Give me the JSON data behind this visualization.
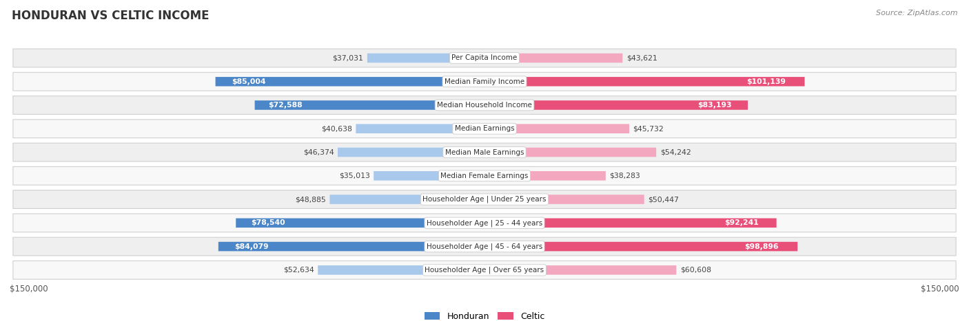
{
  "title": "HONDURAN VS CELTIC INCOME",
  "source": "Source: ZipAtlas.com",
  "categories": [
    "Per Capita Income",
    "Median Family Income",
    "Median Household Income",
    "Median Earnings",
    "Median Male Earnings",
    "Median Female Earnings",
    "Householder Age | Under 25 years",
    "Householder Age | 25 - 44 years",
    "Householder Age | 45 - 64 years",
    "Householder Age | Over 65 years"
  ],
  "honduran_values": [
    37031,
    85004,
    72588,
    40638,
    46374,
    35013,
    48885,
    78540,
    84079,
    52634
  ],
  "celtic_values": [
    43621,
    101139,
    83193,
    45732,
    54242,
    38283,
    50447,
    92241,
    98896,
    60608
  ],
  "honduran_labels": [
    "$37,031",
    "$85,004",
    "$72,588",
    "$40,638",
    "$46,374",
    "$35,013",
    "$48,885",
    "$78,540",
    "$84,079",
    "$52,634"
  ],
  "celtic_labels": [
    "$43,621",
    "$101,139",
    "$83,193",
    "$45,732",
    "$54,242",
    "$38,283",
    "$50,447",
    "$92,241",
    "$98,896",
    "$60,608"
  ],
  "honduran_color_dark": "#4a86c8",
  "honduran_color_light": "#a8c8ec",
  "celtic_color_dark": "#e8507a",
  "celtic_color_light": "#f4a8c0",
  "max_value": 150000,
  "fig_bg": "#ffffff",
  "row_bg_even": "#efefef",
  "row_bg_odd": "#f8f8f8",
  "legend_honduran": "Honduran",
  "legend_celtic": "Celtic",
  "bottom_label_left": "$150,000",
  "bottom_label_right": "$150,000",
  "honduran_dark_threshold": 60000,
  "celtic_dark_threshold": 65000
}
